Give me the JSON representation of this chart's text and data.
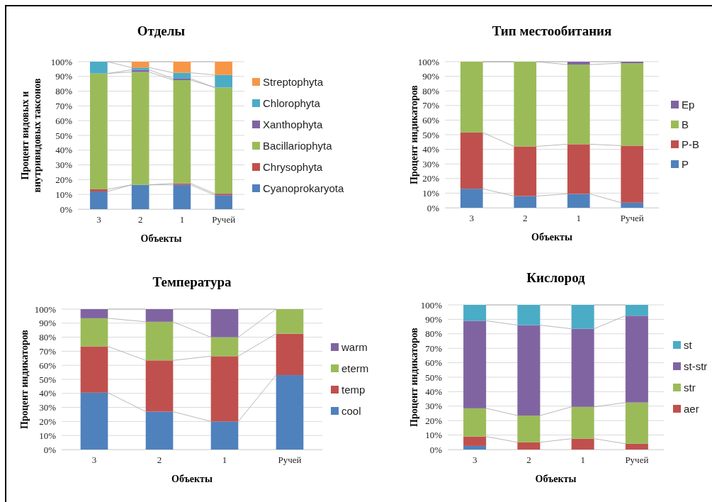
{
  "chart_data": [
    {
      "type": "bar",
      "title": "Отделы",
      "xlabel": "Объекты",
      "ylabel": "Процент видовых и внутривидовых таксонов",
      "categories": [
        "3",
        "2",
        "1",
        "Ручей"
      ],
      "stacked": true,
      "grid": "y",
      "legend": "right",
      "ylim": [
        0,
        100
      ],
      "yticks": [
        {
          "value": 0,
          "label": "0%"
        },
        {
          "value": 10,
          "label": "10%"
        },
        {
          "value": 20,
          "label": "20%"
        },
        {
          "value": 30,
          "label": "30%"
        },
        {
          "value": 40,
          "label": "40%"
        },
        {
          "value": 50,
          "label": "50%"
        },
        {
          "value": 60,
          "label": "60%"
        },
        {
          "value": 70,
          "label": "70%"
        },
        {
          "value": 80,
          "label": "80%"
        },
        {
          "value": 90,
          "label": "90%"
        },
        {
          "value": 100,
          "label": "100%"
        }
      ],
      "series": [
        {
          "name": "Cyanoprokaryota",
          "color": "#4f81bd",
          "values": [
            12,
            16.5,
            16.5,
            9.5
          ]
        },
        {
          "name": "Chrysophyta",
          "color": "#c0504d",
          "values": [
            1.5,
            0,
            1,
            1
          ]
        },
        {
          "name": "Bacillariophyta",
          "color": "#9bbb59",
          "values": [
            78.5,
            76.5,
            70,
            72
          ]
        },
        {
          "name": "Xanthophyta",
          "color": "#8064a2",
          "values": [
            0,
            1.5,
            1,
            0
          ]
        },
        {
          "name": "Chlorophyta",
          "color": "#4bacc6",
          "values": [
            8,
            1.5,
            4,
            8.5
          ]
        },
        {
          "name": "Streptophyta",
          "color": "#f79646",
          "values": [
            0,
            4,
            7.5,
            9
          ]
        }
      ]
    },
    {
      "type": "bar",
      "title": "Тип местообитания",
      "xlabel": "Объекты",
      "ylabel": "Процент индикаторов",
      "categories": [
        "3",
        "2",
        "1",
        "Ручей"
      ],
      "stacked": true,
      "grid": "y",
      "legend": "right",
      "ylim": [
        0,
        100
      ],
      "yticks": [
        {
          "value": 0,
          "label": "0%"
        },
        {
          "value": 10,
          "label": "10%"
        },
        {
          "value": 20,
          "label": "20%"
        },
        {
          "value": 30,
          "label": "30%"
        },
        {
          "value": 40,
          "label": "40%"
        },
        {
          "value": 50,
          "label": "50%"
        },
        {
          "value": 60,
          "label": "60%"
        },
        {
          "value": 70,
          "label": "70%"
        },
        {
          "value": 80,
          "label": "80%"
        },
        {
          "value": 90,
          "label": "90%"
        },
        {
          "value": 100,
          "label": "100%"
        }
      ],
      "series": [
        {
          "name": "P",
          "color": "#4f81bd",
          "values": [
            13,
            8,
            9.5,
            3.5
          ]
        },
        {
          "name": "P-B",
          "color": "#c0504d",
          "values": [
            38.5,
            34,
            34,
            39
          ]
        },
        {
          "name": "B",
          "color": "#9bbb59",
          "values": [
            48.5,
            58,
            54.5,
            56.5
          ]
        },
        {
          "name": "Ep",
          "color": "#8064a2",
          "values": [
            0,
            0,
            2,
            1
          ]
        }
      ]
    },
    {
      "type": "bar",
      "title": "Температура",
      "xlabel": "Объекты",
      "ylabel": "Процент индикаторов",
      "categories": [
        "3",
        "2",
        "1",
        "Ручей"
      ],
      "stacked": true,
      "grid": "y",
      "legend": "right",
      "ylim": [
        0,
        100
      ],
      "yticks": [
        {
          "value": 0,
          "label": "0%"
        },
        {
          "value": 10,
          "label": "10%"
        },
        {
          "value": 20,
          "label": "20%"
        },
        {
          "value": 30,
          "label": "30%"
        },
        {
          "value": 40,
          "label": "40%"
        },
        {
          "value": 50,
          "label": "50%"
        },
        {
          "value": 60,
          "label": "60%"
        },
        {
          "value": 70,
          "label": "70%"
        },
        {
          "value": 80,
          "label": "80%"
        },
        {
          "value": 90,
          "label": "90%"
        },
        {
          "value": 100,
          "label": "100%"
        }
      ],
      "series": [
        {
          "name": "cool",
          "color": "#4f81bd",
          "values": [
            40.5,
            27,
            20,
            53
          ]
        },
        {
          "name": "temp",
          "color": "#c0504d",
          "values": [
            33,
            36.5,
            46.5,
            29.5
          ]
        },
        {
          "name": "eterm",
          "color": "#9bbb59",
          "values": [
            20,
            27.5,
            13.5,
            17.5
          ]
        },
        {
          "name": "warm",
          "color": "#8064a2",
          "values": [
            6.5,
            9,
            20,
            0
          ]
        }
      ]
    },
    {
      "type": "bar",
      "title": "Кислород",
      "xlabel": "Объекты",
      "ylabel": "Процент индикаторов",
      "categories": [
        "3",
        "2",
        "1",
        "Ручей"
      ],
      "stacked": true,
      "grid": "y",
      "legend": "right",
      "ylim": [
        0,
        100
      ],
      "yticks": [
        {
          "value": 0,
          "label": "0%"
        },
        {
          "value": 10,
          "label": "10%"
        },
        {
          "value": 20,
          "label": "20%"
        },
        {
          "value": 30,
          "label": "30%"
        },
        {
          "value": 40,
          "label": "40%"
        },
        {
          "value": 50,
          "label": "50%"
        },
        {
          "value": 60,
          "label": "60%"
        },
        {
          "value": 70,
          "label": "70%"
        },
        {
          "value": 80,
          "label": "80%"
        },
        {
          "value": 90,
          "label": "90%"
        },
        {
          "value": 100,
          "label": "100%"
        }
      ],
      "series": [
        {
          "color": "#4f81bd",
          "values": [
            2.5,
            0,
            0,
            0
          ]
        },
        {
          "name": "aer",
          "color": "#c0504d",
          "values": [
            6.5,
            5,
            7.5,
            4
          ]
        },
        {
          "name": "str",
          "color": "#9bbb59",
          "values": [
            19.5,
            18.5,
            22,
            28.5
          ]
        },
        {
          "name": "st-str",
          "color": "#8064a2",
          "values": [
            60.5,
            62.5,
            54,
            60
          ]
        },
        {
          "name": "st",
          "color": "#4bacc6",
          "values": [
            11,
            14,
            16.5,
            7.5
          ]
        }
      ]
    }
  ]
}
